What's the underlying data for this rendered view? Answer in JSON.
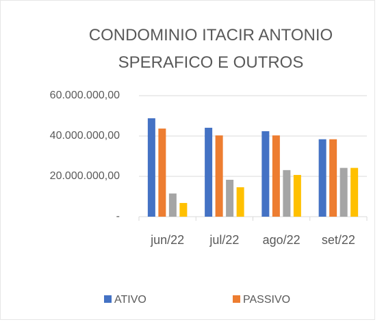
{
  "chart_data": {
    "type": "bar",
    "title": "CONDOMINIO ITACIR ANTONIO SPERAFICO E OUTROS",
    "categories": [
      "jun/22",
      "jul/22",
      "ago/22",
      "set/22"
    ],
    "series": [
      {
        "name": "ATIVO",
        "color": "#4472c4",
        "values": [
          48800000,
          44100000,
          42400000,
          38400000
        ]
      },
      {
        "name": "PASSIVO",
        "color": "#ed7d31",
        "values": [
          43700000,
          40300000,
          40300000,
          38400000
        ]
      },
      {
        "color": "#a5a5a5",
        "values": [
          11500000,
          18300000,
          23100000,
          24200000
        ]
      },
      {
        "color": "#ffc000",
        "values": [
          6800000,
          14600000,
          20700000,
          24200000
        ]
      }
    ],
    "ylim": [
      0,
      60000000
    ],
    "yticks": [
      {
        "value": 0,
        "label": "-"
      },
      {
        "value": 20000000,
        "label": "20.000.000,00"
      },
      {
        "value": 40000000,
        "label": "40.000.000,00"
      },
      {
        "value": 60000000,
        "label": "60.000.000,00"
      }
    ],
    "grid": true
  }
}
